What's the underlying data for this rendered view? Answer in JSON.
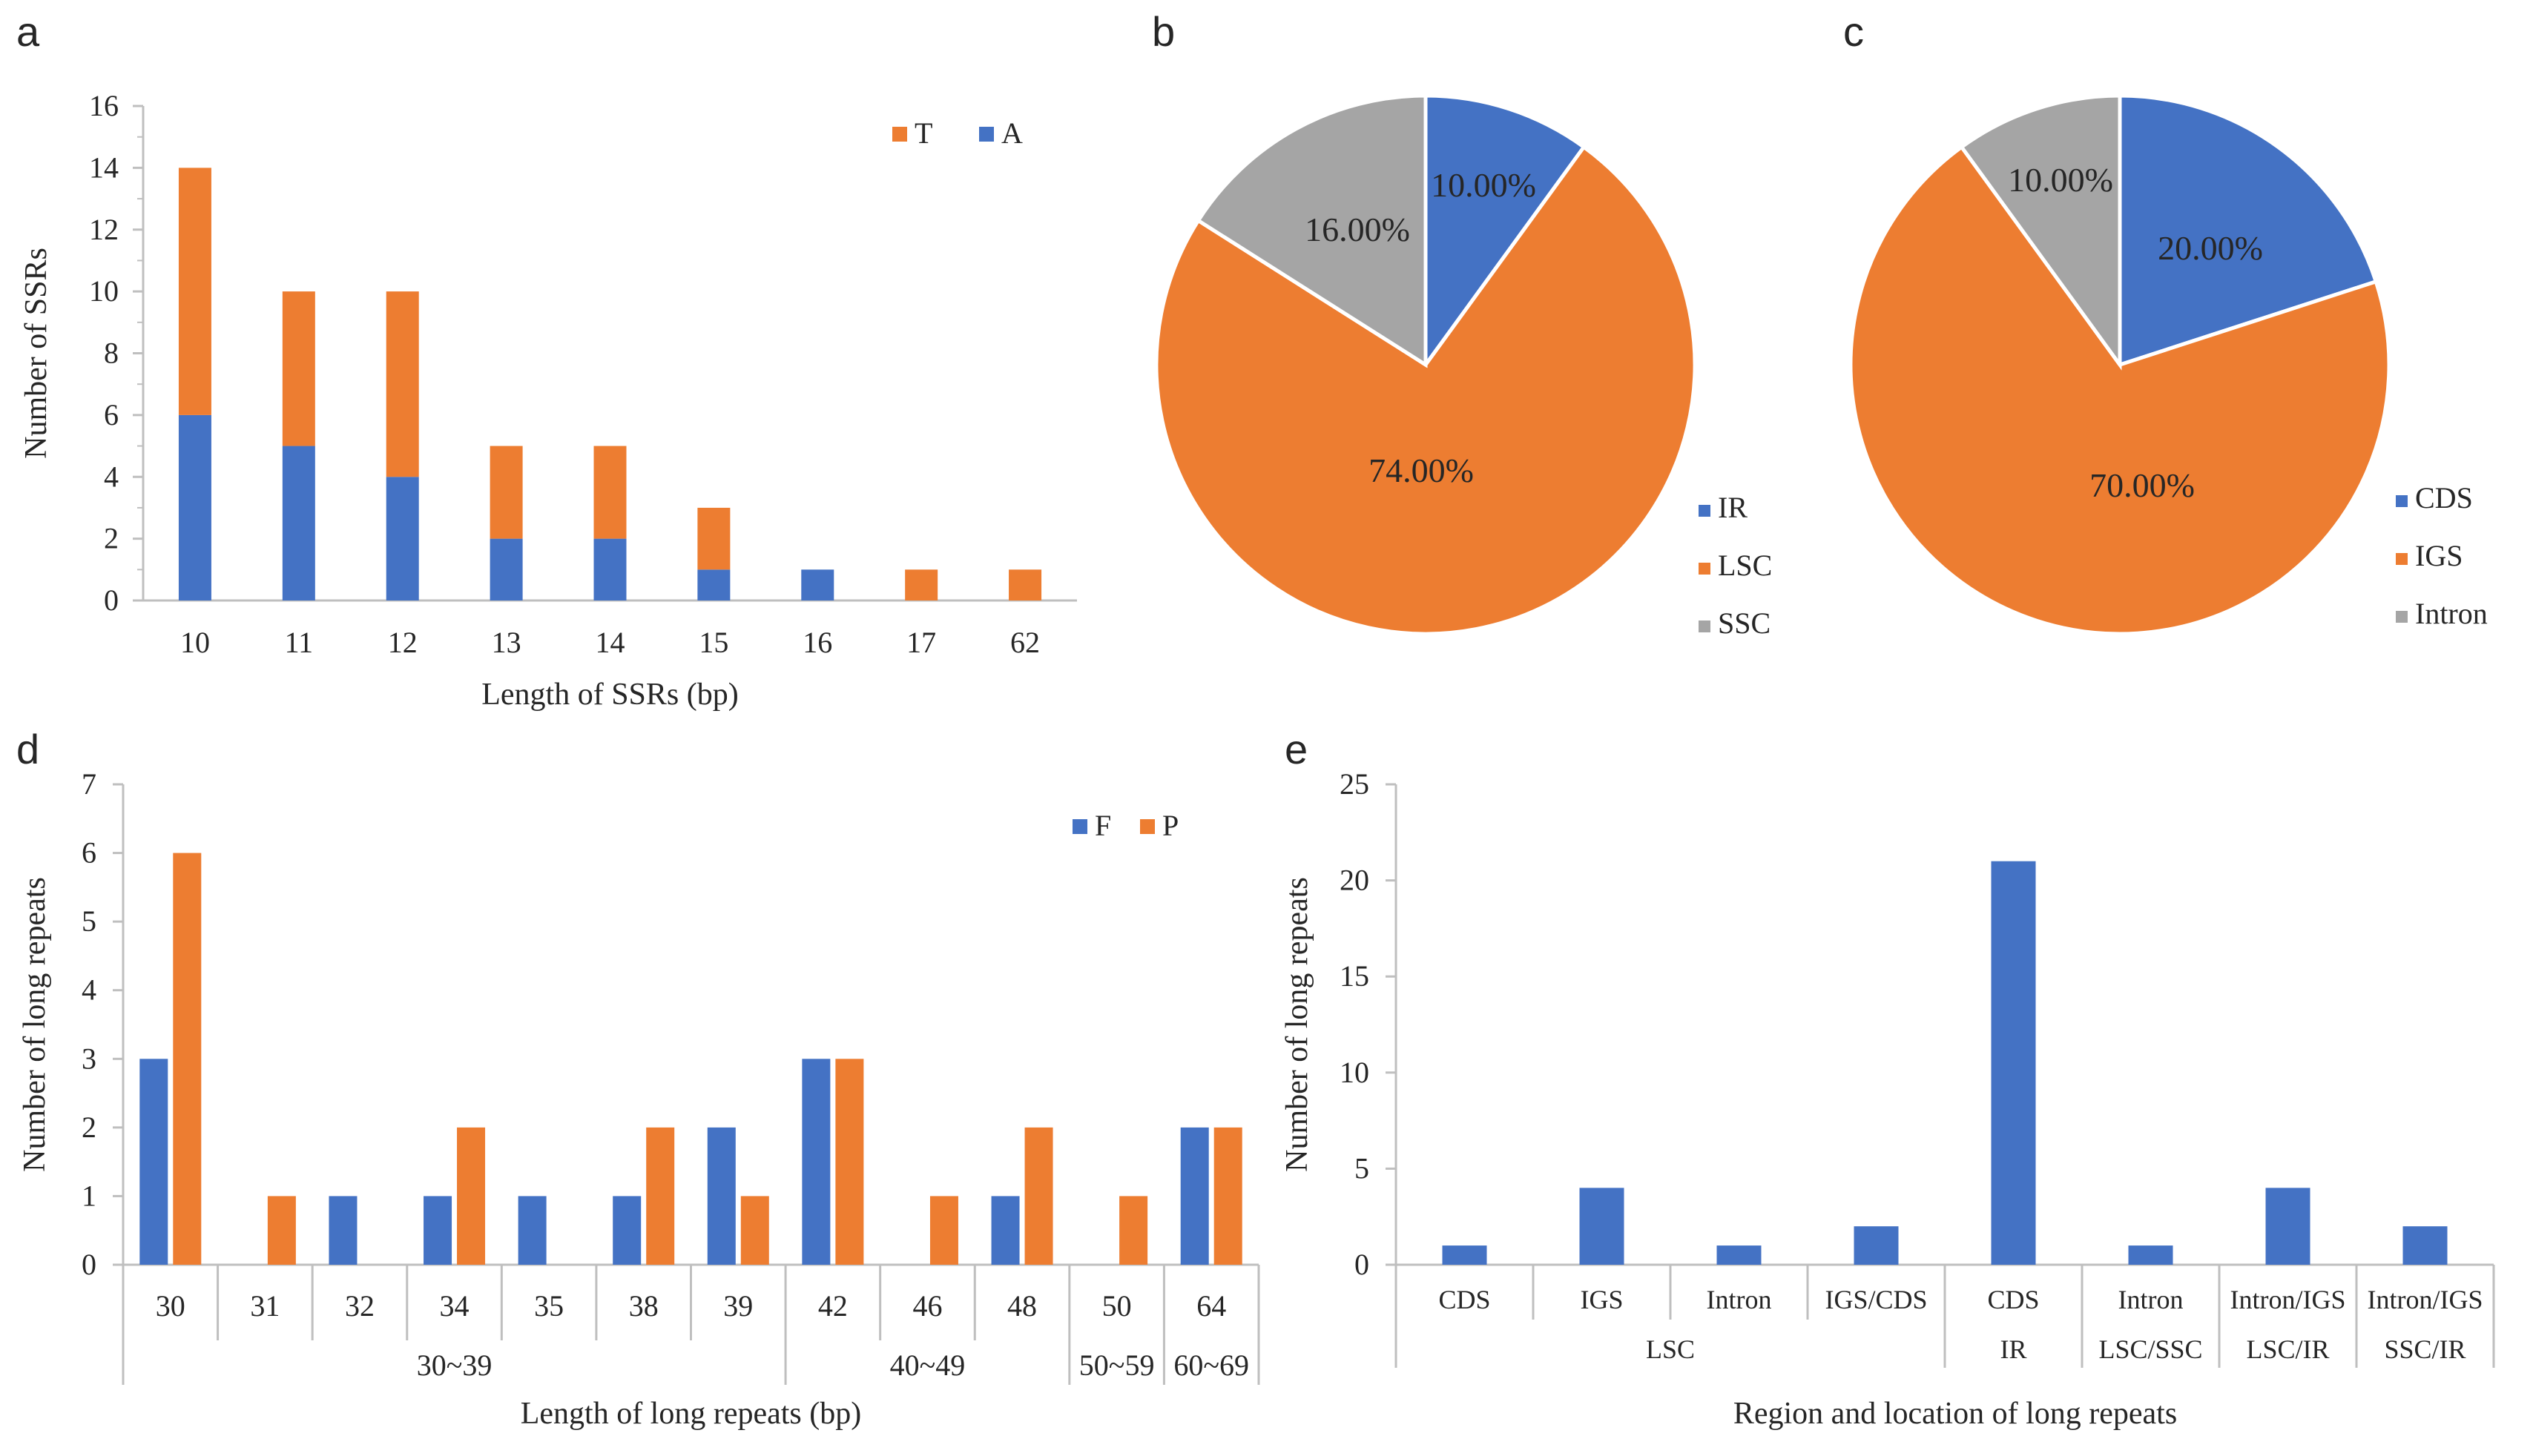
{
  "colors": {
    "blue": "#4472C4",
    "orange": "#ED7D31",
    "gray": "#A5A5A5",
    "axis": "#bfbfbf"
  },
  "chart_data": [
    {
      "panel": "a",
      "type": "bar",
      "stacked": true,
      "categories": [
        "10",
        "11",
        "12",
        "13",
        "14",
        "15",
        "16",
        "17",
        "62"
      ],
      "series": [
        {
          "name": "A",
          "values": [
            6,
            5,
            4,
            2,
            2,
            1,
            1,
            0,
            0
          ]
        },
        {
          "name": "T",
          "values": [
            8,
            5,
            6,
            3,
            3,
            2,
            0,
            1,
            1
          ]
        }
      ],
      "legend_order": [
        "T",
        "A"
      ],
      "xlabel": "Length of SSRs (bp)",
      "ylabel": "Number of SSRs",
      "ylim": [
        0,
        16
      ],
      "yticks": [
        0,
        2,
        4,
        6,
        8,
        10,
        12,
        14,
        16
      ]
    },
    {
      "panel": "b",
      "type": "pie",
      "labels": [
        "IR",
        "LSC",
        "SSC"
      ],
      "values": [
        10,
        74,
        16
      ],
      "data_labels": [
        "10.00%",
        "74.00%",
        "16.00%"
      ]
    },
    {
      "panel": "c",
      "type": "pie",
      "labels": [
        "CDS",
        "IGS",
        "Intron"
      ],
      "values": [
        20,
        70,
        10
      ],
      "data_labels": [
        "20.00%",
        "70.00%",
        "10.00%"
      ]
    },
    {
      "panel": "d",
      "type": "bar",
      "categories": [
        "30",
        "31",
        "32",
        "34",
        "35",
        "38",
        "39",
        "42",
        "46",
        "48",
        "50",
        "64"
      ],
      "groups": [
        {
          "label": "30~39",
          "span": 7
        },
        {
          "label": "40~49",
          "span": 3
        },
        {
          "label": "50~59",
          "span": 1
        },
        {
          "label": "60~69",
          "span": 1
        }
      ],
      "series": [
        {
          "name": "F",
          "values": [
            3,
            0,
            1,
            1,
            1,
            1,
            2,
            3,
            0,
            1,
            0,
            2
          ]
        },
        {
          "name": "P",
          "values": [
            6,
            1,
            0,
            2,
            0,
            2,
            1,
            3,
            1,
            2,
            1,
            2
          ]
        }
      ],
      "xlabel": "Length of long repeats (bp)",
      "ylabel": "Number of long repeats",
      "ylim": [
        0,
        7
      ],
      "yticks": [
        0,
        1,
        2,
        3,
        4,
        5,
        6,
        7
      ]
    },
    {
      "panel": "e",
      "type": "bar",
      "categories": [
        "CDS",
        "IGS",
        "Intron",
        "IGS/CDS",
        "CDS",
        "Intron",
        "Intron/IGS",
        "Intron/IGS"
      ],
      "groups": [
        {
          "label": "LSC",
          "span": 4
        },
        {
          "label": "IR",
          "span": 1
        },
        {
          "label": "LSC/SSC",
          "span": 1
        },
        {
          "label": "LSC/IR",
          "span": 1
        },
        {
          "label": "SSC/IR",
          "span": 1
        }
      ],
      "values": [
        1,
        4,
        1,
        2,
        21,
        1,
        4,
        2
      ],
      "xlabel": "Region and location of long repeats",
      "ylabel": "Number of long repeats",
      "ylim": [
        0,
        25
      ],
      "yticks": [
        0,
        5,
        10,
        15,
        20,
        25
      ]
    }
  ]
}
